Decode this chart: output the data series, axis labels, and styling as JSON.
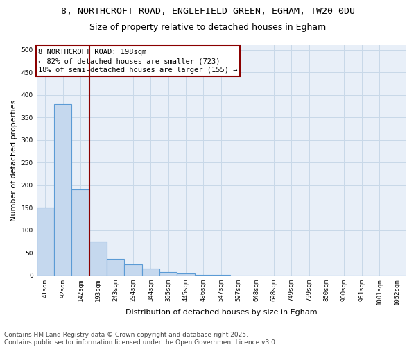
{
  "title_line1": "8, NORTHCROFT ROAD, ENGLEFIELD GREEN, EGHAM, TW20 0DU",
  "title_line2": "Size of property relative to detached houses in Egham",
  "xlabel": "Distribution of detached houses by size in Egham",
  "ylabel": "Number of detached properties",
  "bar_labels": [
    "41sqm",
    "92sqm",
    "142sqm",
    "193sqm",
    "243sqm",
    "294sqm",
    "344sqm",
    "395sqm",
    "445sqm",
    "496sqm",
    "547sqm",
    "597sqm",
    "648sqm",
    "698sqm",
    "749sqm",
    "799sqm",
    "850sqm",
    "900sqm",
    "951sqm",
    "1001sqm",
    "1052sqm"
  ],
  "bar_values": [
    150,
    380,
    190,
    75,
    37,
    25,
    15,
    7,
    5,
    2,
    1,
    0,
    0,
    0,
    0,
    0,
    0,
    0,
    0,
    0,
    0
  ],
  "bar_color": "#c5d8ee",
  "bar_edgecolor": "#5b9bd5",
  "bar_linewidth": 0.8,
  "grid_color": "#c8d8e8",
  "bg_color": "#e8eff8",
  "vline_color": "#8b0000",
  "annotation_text": "8 NORTHCROFT ROAD: 198sqm\n← 82% of detached houses are smaller (723)\n18% of semi-detached houses are larger (155) →",
  "annotation_box_color": "#8b0000",
  "ylim": [
    0,
    510
  ],
  "yticks": [
    0,
    50,
    100,
    150,
    200,
    250,
    300,
    350,
    400,
    450,
    500
  ],
  "footer_line1": "Contains HM Land Registry data © Crown copyright and database right 2025.",
  "footer_line2": "Contains public sector information licensed under the Open Government Licence v3.0.",
  "title_fontsize": 9.5,
  "subtitle_fontsize": 9,
  "axis_label_fontsize": 8,
  "tick_fontsize": 6.5,
  "annotation_fontsize": 7.5,
  "footer_fontsize": 6.5
}
